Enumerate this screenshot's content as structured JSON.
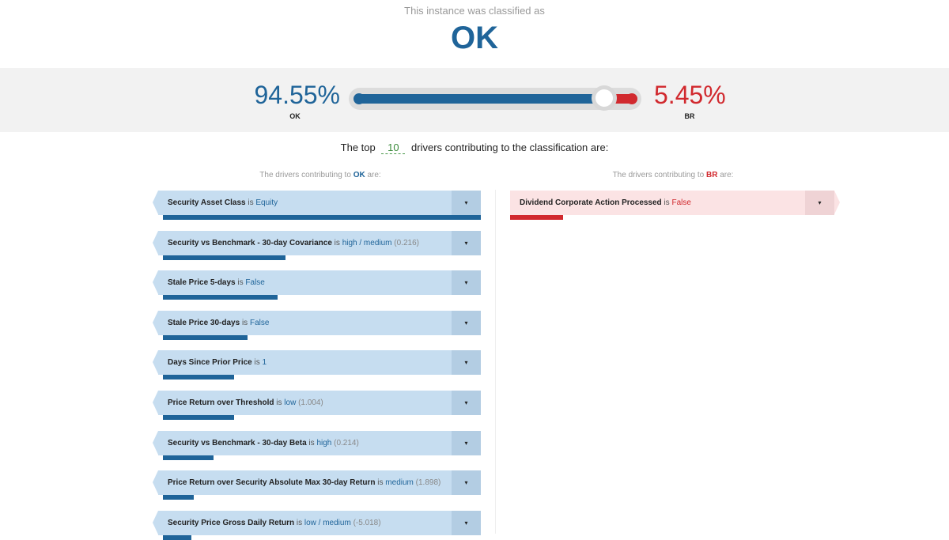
{
  "header": {
    "subtitle": "This instance was classified as",
    "verdict": "OK"
  },
  "probabilities": {
    "ok_percent": "94.55%",
    "ok_label": "OK",
    "br_percent": "5.45%",
    "br_label": "BR",
    "ok_value": 0.9455,
    "colors": {
      "ok": "#1f6499",
      "br": "#d1292e"
    }
  },
  "top_n": {
    "prefix": "The top",
    "value": "10",
    "suffix": "drivers contributing to the classification are:"
  },
  "ok_column": {
    "heading_prefix": "The drivers contributing to",
    "heading_class": "OK",
    "heading_suffix": "are:",
    "drivers": [
      {
        "name": "Security Asset Class",
        "is": "is",
        "value": "Equity",
        "score": "",
        "weight": 1.0,
        "toggle": "▾"
      },
      {
        "name": "Security vs Benchmark - 30-day Covariance",
        "is": "is",
        "value": "high / medium",
        "score": "(0.216)",
        "weight": 0.385,
        "toggle": "▾"
      },
      {
        "name": "Stale Price 5-days",
        "is": "is",
        "value": "False",
        "score": "",
        "weight": 0.36,
        "toggle": "▾"
      },
      {
        "name": "Stale Price 30-days",
        "is": "is",
        "value": "False",
        "score": "",
        "weight": 0.267,
        "toggle": "▾"
      },
      {
        "name": "Days Since Prior Price",
        "is": "is",
        "value": "1",
        "score": "",
        "weight": 0.225,
        "toggle": "▾"
      },
      {
        "name": "Price Return over Threshold",
        "is": "is",
        "value": "low",
        "score": "(1.004)",
        "weight": 0.225,
        "toggle": "▾"
      },
      {
        "name": "Security vs Benchmark - 30-day Beta",
        "is": "is",
        "value": "high",
        "score": "(0.214)",
        "weight": 0.16,
        "toggle": "▾"
      },
      {
        "name": "Price Return over Security Absolute Max 30-day Return",
        "is": "is",
        "value": "medium",
        "score": "(1.898)",
        "weight": 0.096,
        "toggle": "▾"
      },
      {
        "name": "Security Price Gross Daily Return",
        "is": "is",
        "value": "low / medium",
        "score": "(-5.018)",
        "weight": 0.09,
        "toggle": "▾"
      }
    ]
  },
  "br_column": {
    "heading_prefix": "The drivers contributing to",
    "heading_class": "BR",
    "heading_suffix": "are:",
    "drivers": [
      {
        "name": "Dividend Corporate Action Processed",
        "is": "is",
        "value": "False",
        "score": "",
        "weight": 0.163,
        "toggle": "▾"
      }
    ]
  }
}
